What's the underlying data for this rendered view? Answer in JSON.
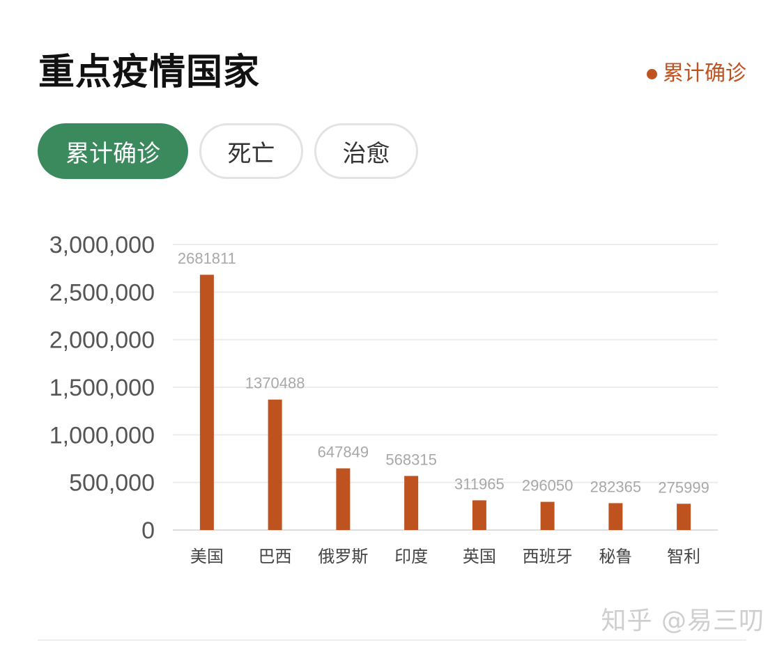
{
  "title": "重点疫情国家",
  "legend": {
    "label": "累计确诊",
    "color": "#bf5320"
  },
  "tabs": [
    {
      "label": "累计确诊",
      "active": true
    },
    {
      "label": "死亡",
      "active": false
    },
    {
      "label": "治愈",
      "active": false
    }
  ],
  "watermark": "知乎 @易三叨",
  "chart_data": {
    "type": "bar",
    "categories": [
      "美国",
      "巴西",
      "俄罗斯",
      "印度",
      "英国",
      "西班牙",
      "秘鲁",
      "智利"
    ],
    "series": [
      {
        "name": "累计确诊",
        "values": [
          2681811,
          1370488,
          647849,
          568315,
          311965,
          296050,
          282365,
          275999
        ],
        "color": "#bf5320"
      }
    ],
    "ylim": [
      0,
      3000000
    ],
    "yticks": [
      0,
      500000,
      1000000,
      1500000,
      2000000,
      2500000,
      3000000
    ],
    "ytick_labels": [
      "0",
      "500,000",
      "1,000,000",
      "1,500,000",
      "2,000,000",
      "2,500,000",
      "3,000,000"
    ],
    "grid": true,
    "data_labels": true
  }
}
